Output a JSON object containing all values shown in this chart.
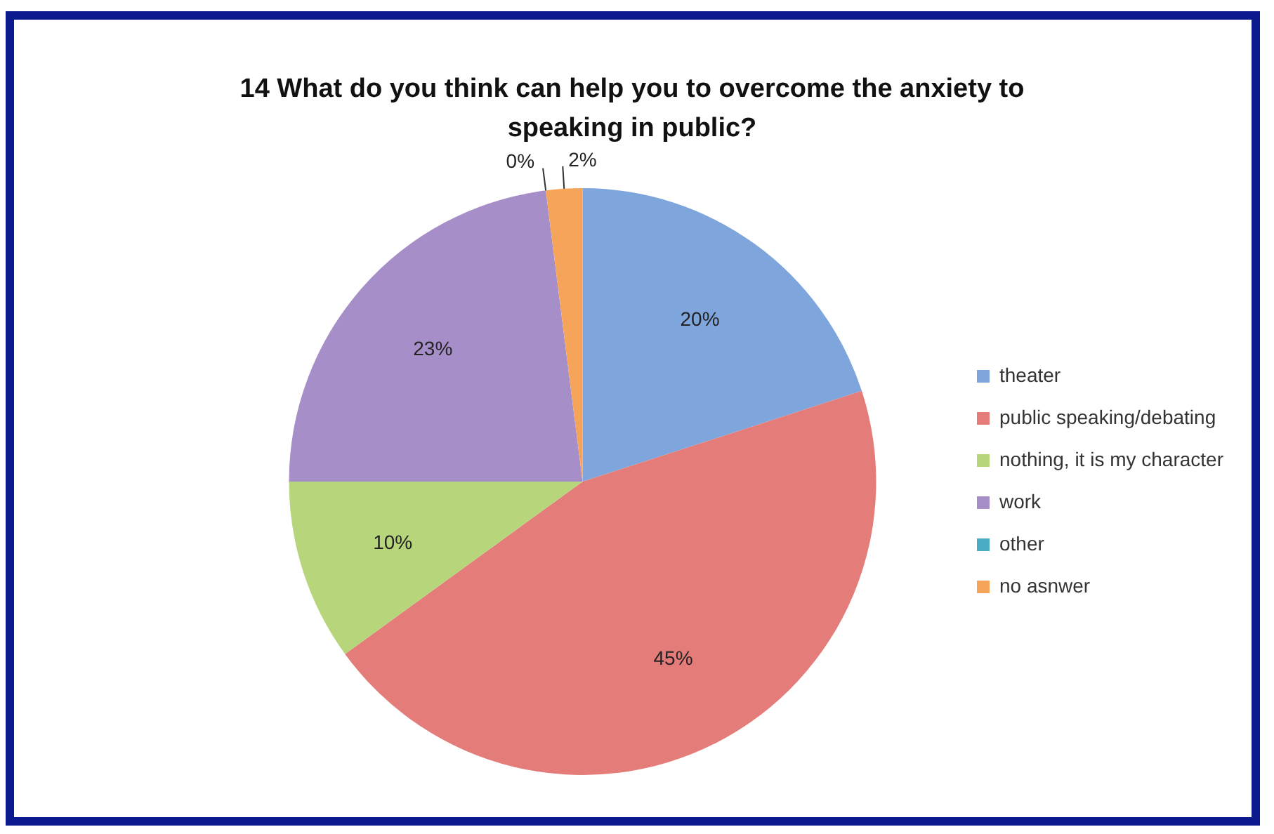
{
  "chart_data": {
    "type": "pie",
    "title": "14 What do you think can help you to overcome the anxiety to speaking in public?",
    "categories": [
      "theater",
      "public speaking/debating",
      "nothing, it is my character",
      "work",
      "other",
      "no asnwer"
    ],
    "values": [
      20,
      45,
      10,
      23,
      0,
      2
    ],
    "value_labels": [
      "20%",
      "45%",
      "10%",
      "23%",
      "0%",
      "2%"
    ],
    "colors": [
      "#7ea6dc",
      "#e47c79",
      "#b7d67c",
      "#a68fc9",
      "#4bacc6",
      "#f6a45a"
    ],
    "legend": "right"
  }
}
